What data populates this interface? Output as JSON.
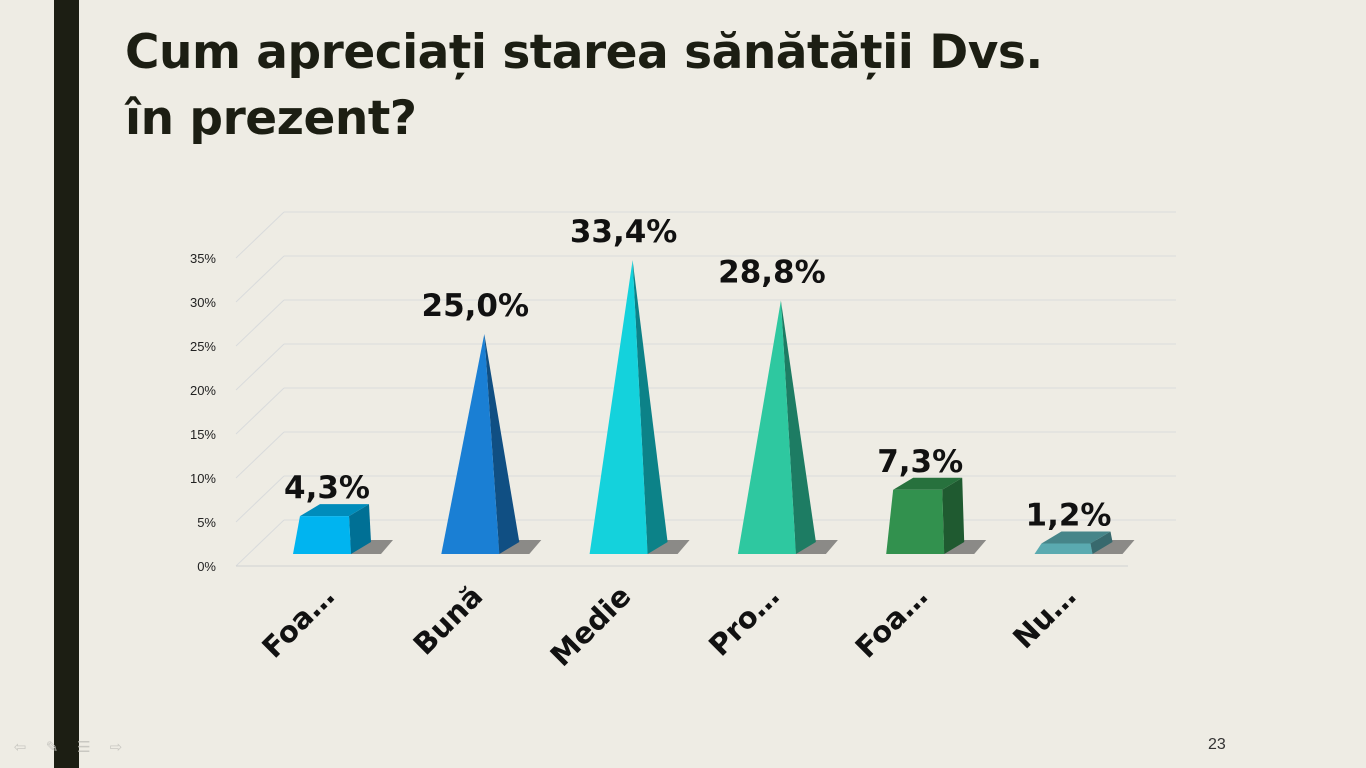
{
  "slide": {
    "title_line1": "Cum apreciați starea sănătății Dvs.",
    "title_line2": "în prezent?",
    "slide_number": "23"
  },
  "nav": {
    "prev_icon": "arrow-left-icon",
    "pen_icon": "pen-icon",
    "menu_icon": "menu-icon",
    "next_icon": "arrow-right-icon"
  },
  "chart_data": {
    "type": "bar",
    "categories": [
      "Foa…",
      "Bună",
      "Medie",
      "Pro…",
      "Foa…",
      "Nu…"
    ],
    "values": [
      4.3,
      25.0,
      33.4,
      28.8,
      7.3,
      1.2
    ],
    "data_labels": [
      "4,3%",
      "25,0%",
      "33,4%",
      "28,8%",
      "7,3%",
      "1,2%"
    ],
    "shapes": [
      "box",
      "pyramid",
      "pyramid",
      "pyramid",
      "box",
      "box"
    ],
    "colors": [
      "#00b4f0",
      "#1a7fd4",
      "#14d2dc",
      "#2ec8a0",
      "#32914e",
      "#5aaab0"
    ],
    "yticks": [
      "0%",
      "5%",
      "10%",
      "15%",
      "20%",
      "25%",
      "30%",
      "35%"
    ],
    "ylim": [
      0,
      35
    ],
    "grid": true,
    "title": "",
    "xlabel": "",
    "ylabel": ""
  }
}
